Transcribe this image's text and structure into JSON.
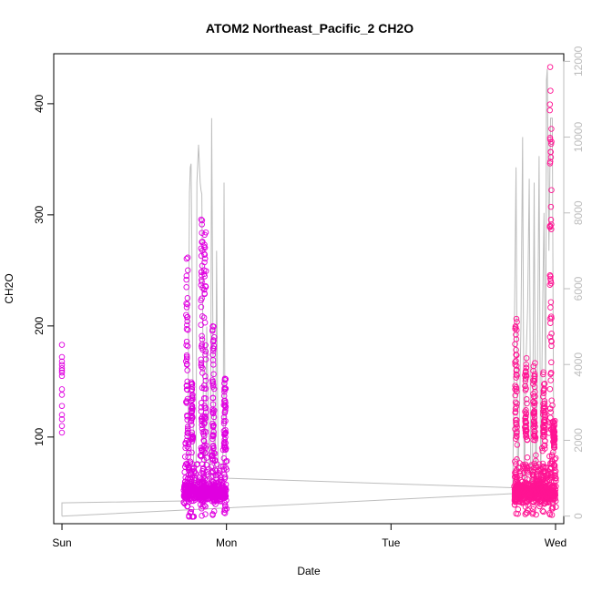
{
  "chart_data": {
    "type": "scatter",
    "title": "ATOM2 Northeast_Pacific_2 CH2O",
    "xlabel": "Date",
    "ylabel": "CH2O",
    "x_ticks": [
      "Sun",
      "Mon",
      "Tue",
      "Wed"
    ],
    "x_range_days": [
      -0.05,
      3.05
    ],
    "y_range": [
      22,
      445
    ],
    "y_ticks": [
      100,
      200,
      300,
      400
    ],
    "y2_range": [
      -200,
      12200
    ],
    "y2_ticks": [
      0,
      2000,
      4000,
      6000,
      8000,
      10000,
      12000
    ],
    "grid": false,
    "colors": {
      "points_early": "#e000e0",
      "points_late": "#ff1493",
      "secondary_line": "#bdbdbd"
    },
    "series": [
      {
        "role": "scatter",
        "axis": "left",
        "clusters": [
          {
            "x": [
              0.0,
              0.0,
              0.0,
              0.0,
              0.0,
              0.0,
              0.0,
              0.0,
              0.0,
              0.0,
              0.0,
              0.0,
              0.0,
              0.0,
              0.0
            ],
            "y": [
              183,
              172,
              168,
              165,
              162,
              158,
              155,
              143,
              138,
              128,
              120,
              116,
              110,
              104,
              160
            ]
          },
          {
            "range_x": [
              0.74,
              1.0
            ],
            "base_y": [
              28,
              75
            ],
            "peaks": [
              {
                "x": 0.76,
                "y": [
                  100,
                  270
                ]
              },
              {
                "x": 0.79,
                "y": [
                  95,
                  150
                ]
              },
              {
                "x": 0.85,
                "y": [
                  110,
                  297
                ]
              },
              {
                "x": 0.87,
                "y": [
                  100,
                  285
                ]
              },
              {
                "x": 0.92,
                "y": [
                  90,
                  205
                ]
              },
              {
                "x": 0.99,
                "y": [
                  90,
                  155
                ]
              }
            ]
          },
          {
            "range_x": [
              2.75,
              3.0
            ],
            "base_y": [
              28,
              100
            ],
            "peaks": [
              {
                "x": 2.76,
                "y": [
                  100,
                  208
                ]
              },
              {
                "x": 2.82,
                "y": [
                  100,
                  175
                ]
              },
              {
                "x": 2.87,
                "y": [
                  100,
                  168
                ]
              },
              {
                "x": 2.93,
                "y": [
                  100,
                  160
                ]
              },
              {
                "x": 2.97,
                "y": [
                  150,
                  433
                ]
              },
              {
                "x": 2.99,
                "y": [
                  90,
                  115
                ]
              }
            ]
          }
        ]
      },
      {
        "role": "line",
        "axis": "right",
        "x": [
          0.0,
          0.0,
          0.755,
          0.76,
          0.765,
          0.77,
          0.775,
          0.78,
          0.785,
          0.79,
          0.8,
          0.81,
          0.815,
          0.82,
          0.83,
          0.84,
          0.845,
          0.85,
          0.86,
          0.87,
          0.88,
          0.89,
          0.9,
          0.905,
          0.91,
          0.92,
          0.93,
          0.935,
          0.94,
          0.95,
          0.96,
          0.97,
          0.98,
          0.985,
          0.99,
          1.0,
          2.74,
          2.76,
          2.77,
          2.78,
          2.79,
          2.8,
          2.81,
          2.82,
          2.83,
          2.84,
          2.85,
          2.86,
          2.87,
          2.88,
          2.89,
          2.9,
          2.91,
          2.92,
          2.93,
          2.94,
          2.945,
          2.95,
          2.96,
          2.97,
          2.98,
          2.99,
          3.0,
          3.0,
          0.0
        ],
        "y": [
          0,
          350,
          400,
          600,
          1200,
          5000,
          8500,
          9200,
          9300,
          7000,
          1500,
          600,
          1000,
          8800,
          9800,
          8800,
          8600,
          8500,
          2500,
          700,
          5000,
          2500,
          700,
          4000,
          10500,
          3000,
          1000,
          2500,
          7000,
          800,
          1000,
          500,
          2000,
          8800,
          3000,
          1000,
          750,
          9200,
          600,
          2500,
          5000,
          10000,
          300,
          4000,
          5500,
          8900,
          600,
          1500,
          8800,
          300,
          4000,
          9500,
          600,
          5000,
          8000,
          3000,
          11500,
          11800,
          7000,
          10500,
          10500,
          300,
          300,
          650,
          0
        ]
      }
    ]
  }
}
